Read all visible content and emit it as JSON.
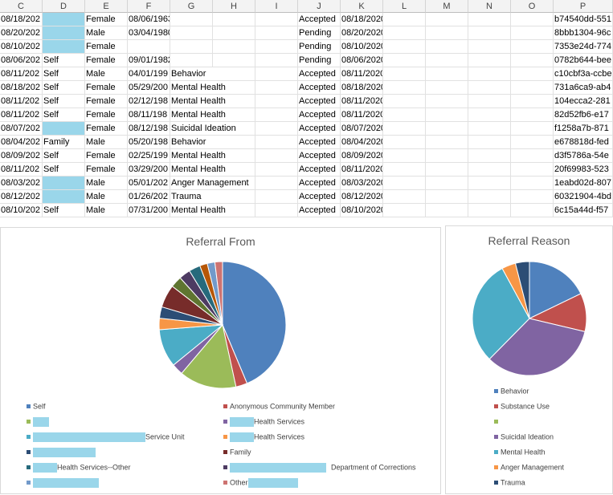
{
  "spreadsheet": {
    "columns": [
      "C",
      "D",
      "E",
      "F",
      "G",
      "H",
      "I",
      "J",
      "K",
      "L",
      "M",
      "N",
      "O",
      "P"
    ],
    "rows": [
      {
        "C": "08/18/202",
        "D": "",
        "E": "Female",
        "F": "08/06/1963",
        "G": "",
        "J": "Accepted",
        "K": "08/18/2020",
        "P": "b74540dd-551"
      },
      {
        "C": "08/20/202",
        "D": "",
        "E": "Male",
        "F": "03/04/1980",
        "G": "",
        "J": "Pending",
        "K": "08/20/2020",
        "P": "8bbb1304-96c"
      },
      {
        "C": "08/10/202",
        "D": "",
        "E": "Female",
        "F": "",
        "G": "",
        "J": "Pending",
        "K": "08/10/2020",
        "P": "7353e24d-774"
      },
      {
        "C": "08/06/202",
        "D": "Self",
        "E": "Female",
        "F": "09/01/1982",
        "G": "",
        "J": "Pending",
        "K": "08/06/2020",
        "P": "0782b644-bee"
      },
      {
        "C": "08/11/202",
        "D": "Self",
        "E": "Male",
        "F": "04/01/199",
        "G": "Behavior",
        "J": "Accepted",
        "K": "08/11/2020",
        "P": "c10cbf3a-ccbe"
      },
      {
        "C": "08/18/202",
        "D": "Self",
        "E": "Female",
        "F": "05/29/200",
        "G": "Mental Health",
        "J": "Accepted",
        "K": "08/18/2020",
        "P": "731a6ca9-ab4"
      },
      {
        "C": "08/11/202",
        "D": "Self",
        "E": "Female",
        "F": "02/12/198",
        "G": "Mental Health",
        "J": "Accepted",
        "K": "08/11/2020",
        "P": "104ecca2-281"
      },
      {
        "C": "08/11/202",
        "D": "Self",
        "E": "Female",
        "F": "08/11/198",
        "G": "Mental Health",
        "J": "Accepted",
        "K": "08/11/2020",
        "P": "82d52fb6-e17"
      },
      {
        "C": "08/07/202",
        "D": "",
        "E": "Female",
        "F": "08/12/198",
        "G": "Suicidal Ideation",
        "J": "Accepted",
        "K": "08/07/2020",
        "P": "f1258a7b-871"
      },
      {
        "C": "08/04/202",
        "D": "Family",
        "E": "Male",
        "F": "05/20/198",
        "G": "Behavior",
        "J": "Accepted",
        "K": "08/04/2020",
        "P": "e678818d-fed"
      },
      {
        "C": "08/09/202",
        "D": "Self",
        "E": "Female",
        "F": "02/25/199",
        "G": "Mental Health",
        "J": "Accepted",
        "K": "08/09/2020",
        "P": "d3f5786a-54e"
      },
      {
        "C": "08/11/202",
        "D": "Self",
        "E": "Female",
        "F": "03/29/200",
        "G": "Mental Health",
        "J": "Accepted",
        "K": "08/11/2020",
        "P": "20f69983-523"
      },
      {
        "C": "08/03/202",
        "D": "",
        "E": "Male",
        "F": "05/01/202",
        "G": "Anger Management",
        "J": "Accepted",
        "K": "08/03/2020",
        "P": "1eabd02d-807"
      },
      {
        "C": "08/12/202",
        "D": "",
        "E": "Male",
        "F": "01/26/202",
        "G": "Trauma",
        "J": "Accepted",
        "K": "08/12/2020",
        "P": "60321904-4bd"
      },
      {
        "C": "08/10/202",
        "D": "Self",
        "E": "Male",
        "F": "07/31/200",
        "G": "Mental Health",
        "J": "Accepted",
        "K": "08/10/2020",
        "P": "6c15a44d-f57"
      }
    ]
  },
  "chart_data": [
    {
      "type": "pie",
      "title": "Referral From",
      "labels": [
        "Self",
        "Anonymous Community Member",
        "",
        "Health Services",
        "Service Unit",
        "Health Services",
        "",
        "Family",
        "",
        "",
        "Health Services--Other",
        "Department of Corrections",
        "",
        "Other"
      ],
      "values": [
        45,
        3,
        15,
        3,
        10,
        3,
        3,
        6,
        3,
        3,
        3,
        2,
        2,
        2
      ],
      "colors": [
        "#4f81bd",
        "#c0504d",
        "#9bbb59",
        "#8064a2",
        "#4bacc6",
        "#f79646",
        "#2c4d75",
        "#772c2a",
        "#5f7530",
        "#4d3b62",
        "#276a7c",
        "#b65708",
        "#729aca",
        "#cd7371"
      ]
    },
    {
      "type": "pie",
      "title": "Referral Reason",
      "labels": [
        "Behavior",
        "Substance Use",
        "",
        "Suicidal Ideation",
        "Mental Health",
        "Anger Management",
        "Trauma"
      ],
      "values": [
        18,
        11,
        0,
        34,
        30,
        4,
        4
      ],
      "colors": [
        "#4f81bd",
        "#c0504d",
        "#9bbb59",
        "#8064a2",
        "#4bacc6",
        "#f79646",
        "#2c4d75"
      ]
    }
  ]
}
